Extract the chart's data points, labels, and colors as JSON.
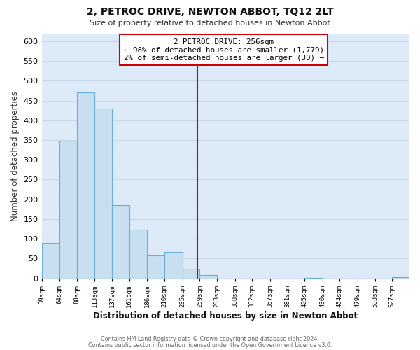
{
  "title": "2, PETROC DRIVE, NEWTON ABBOT, TQ12 2LT",
  "subtitle": "Size of property relative to detached houses in Newton Abbot",
  "xlabel": "Distribution of detached houses by size in Newton Abbot",
  "ylabel": "Number of detached properties",
  "bin_labels": [
    "39sqm",
    "64sqm",
    "88sqm",
    "113sqm",
    "137sqm",
    "161sqm",
    "186sqm",
    "210sqm",
    "235sqm",
    "259sqm",
    "283sqm",
    "308sqm",
    "332sqm",
    "357sqm",
    "381sqm",
    "405sqm",
    "430sqm",
    "454sqm",
    "479sqm",
    "503sqm",
    "527sqm"
  ],
  "bin_edges": [
    39,
    64,
    88,
    113,
    137,
    161,
    186,
    210,
    235,
    259,
    283,
    308,
    332,
    357,
    381,
    405,
    430,
    454,
    479,
    503,
    527,
    551
  ],
  "bar_values": [
    90,
    348,
    471,
    430,
    185,
    124,
    57,
    67,
    24,
    8,
    0,
    0,
    0,
    0,
    0,
    2,
    0,
    0,
    0,
    0,
    3
  ],
  "bar_color": "#c8dff0",
  "bar_edge_color": "#6aaed6",
  "property_line_x": 256,
  "property_line_color": "#cc0000",
  "annotation_line1": "2 PETROC DRIVE: 256sqm",
  "annotation_line2": "← 98% of detached houses are smaller (1,779)",
  "annotation_line3": "2% of semi-detached houses are larger (30) →",
  "ylim": [
    0,
    620
  ],
  "yticks": [
    0,
    50,
    100,
    150,
    200,
    250,
    300,
    350,
    400,
    450,
    500,
    550,
    600
  ],
  "grid_color": "#c8d8e8",
  "plot_bg_color": "#ddeaf7",
  "figure_bg_color": "#ffffff",
  "footer_line1": "Contains HM Land Registry data © Crown copyright and database right 2024.",
  "footer_line2": "Contains public sector information licensed under the Open Government Licence v3.0."
}
